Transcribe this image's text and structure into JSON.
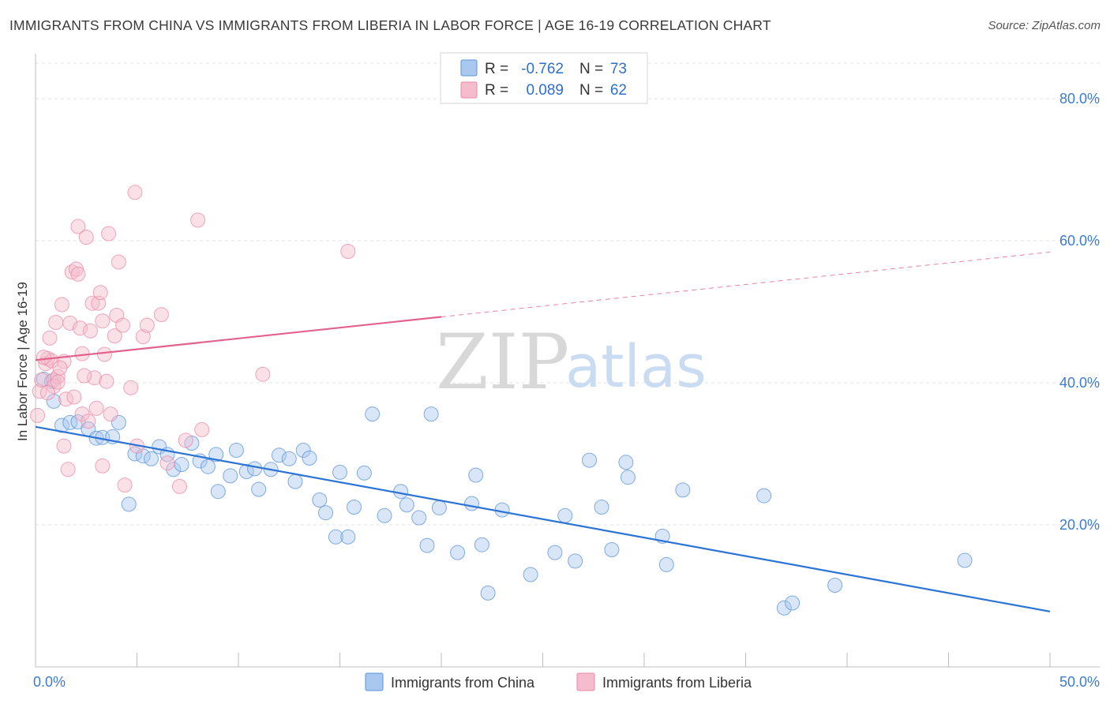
{
  "header": {
    "title": "IMMIGRANTS FROM CHINA VS IMMIGRANTS FROM LIBERIA IN LABOR FORCE | AGE 16-19 CORRELATION CHART",
    "source": "Source: ZipAtlas.com"
  },
  "watermark": {
    "zip": "ZIP",
    "atlas": "atlas"
  },
  "stats_legend": {
    "r_label": "R =",
    "n_label": "N =",
    "rows": [
      {
        "r": "-0.762",
        "n": "73",
        "color": "#5b93d9"
      },
      {
        "r": "0.089",
        "n": "62",
        "color": "#e98aa8"
      }
    ]
  },
  "chart_data": {
    "type": "scatter",
    "ylabel": "In Labor Force | Age 16-19",
    "xlim": [
      0,
      50
    ],
    "ylim": [
      0,
      85
    ],
    "x_tick_labels": [
      {
        "value": 0,
        "label": "0.0%"
      },
      {
        "value": 50,
        "label": "50.0%"
      }
    ],
    "y_tick_labels": [
      {
        "value": 20,
        "label": "20.0%"
      },
      {
        "value": 40,
        "label": "40.0%"
      },
      {
        "value": 60,
        "label": "60.0%"
      },
      {
        "value": 80,
        "label": "80.0%"
      }
    ],
    "x_minor_ticks": [
      0,
      5,
      10,
      15,
      20,
      25,
      30,
      35,
      40,
      45,
      50
    ],
    "grid": true,
    "legend_position": "bottom-center",
    "series": [
      {
        "name": "Immigrants from China",
        "color": "#5b93d9",
        "fill": "#a9c8ef",
        "trend": {
          "x0": 0,
          "y0": 33.8,
          "x1": 50,
          "y1": 7.8,
          "dashed_from": null
        },
        "points": [
          [
            0.4,
            40.5
          ],
          [
            0.9,
            37.4
          ],
          [
            1.3,
            34.0
          ],
          [
            1.7,
            34.4
          ],
          [
            2.1,
            34.5
          ],
          [
            2.6,
            33.5
          ],
          [
            3.0,
            32.2
          ],
          [
            3.3,
            32.3
          ],
          [
            3.8,
            32.4
          ],
          [
            4.1,
            34.4
          ],
          [
            4.6,
            22.9
          ],
          [
            4.9,
            30.0
          ],
          [
            5.3,
            29.7
          ],
          [
            5.7,
            29.3
          ],
          [
            6.1,
            31.0
          ],
          [
            6.5,
            29.9
          ],
          [
            6.8,
            27.8
          ],
          [
            7.2,
            28.5
          ],
          [
            7.7,
            31.5
          ],
          [
            8.1,
            29.0
          ],
          [
            8.5,
            28.2
          ],
          [
            8.9,
            29.9
          ],
          [
            9.0,
            24.7
          ],
          [
            9.6,
            26.9
          ],
          [
            9.9,
            30.5
          ],
          [
            10.4,
            27.5
          ],
          [
            10.8,
            27.9
          ],
          [
            11.0,
            25.0
          ],
          [
            11.6,
            27.8
          ],
          [
            12.0,
            29.8
          ],
          [
            12.5,
            29.3
          ],
          [
            12.8,
            26.1
          ],
          [
            13.2,
            30.5
          ],
          [
            13.5,
            29.4
          ],
          [
            14.0,
            23.5
          ],
          [
            14.3,
            21.7
          ],
          [
            14.8,
            18.3
          ],
          [
            15.0,
            27.4
          ],
          [
            15.4,
            18.3
          ],
          [
            15.7,
            22.5
          ],
          [
            16.2,
            27.3
          ],
          [
            16.6,
            35.6
          ],
          [
            17.2,
            21.3
          ],
          [
            18.0,
            24.7
          ],
          [
            18.3,
            22.8
          ],
          [
            18.9,
            21.0
          ],
          [
            19.3,
            17.1
          ],
          [
            19.5,
            35.6
          ],
          [
            19.9,
            22.4
          ],
          [
            20.8,
            16.1
          ],
          [
            21.5,
            23.0
          ],
          [
            21.7,
            27.0
          ],
          [
            22.0,
            17.2
          ],
          [
            22.3,
            10.4
          ],
          [
            23.0,
            22.1
          ],
          [
            24.4,
            13.0
          ],
          [
            25.6,
            16.1
          ],
          [
            26.1,
            21.3
          ],
          [
            26.6,
            14.9
          ],
          [
            27.3,
            29.1
          ],
          [
            27.9,
            22.5
          ],
          [
            28.4,
            16.5
          ],
          [
            29.1,
            28.8
          ],
          [
            29.2,
            26.7
          ],
          [
            30.9,
            18.4
          ],
          [
            31.1,
            14.4
          ],
          [
            31.9,
            24.9
          ],
          [
            35.9,
            24.1
          ],
          [
            36.9,
            8.3
          ],
          [
            37.3,
            9.0
          ],
          [
            39.4,
            11.5
          ],
          [
            45.8,
            15.0
          ],
          [
            0.8,
            40.2
          ]
        ]
      },
      {
        "name": "Immigrants from Liberia",
        "color": "#e98aa8",
        "fill": "#f5bccd",
        "trend": {
          "x0": 0,
          "y0": 43.2,
          "x1": 50,
          "y1": 58.4,
          "dashed_from": 20
        },
        "points": [
          [
            0.1,
            35.4
          ],
          [
            0.2,
            38.8
          ],
          [
            0.3,
            40.4
          ],
          [
            0.5,
            42.7
          ],
          [
            0.6,
            43.4
          ],
          [
            0.7,
            46.3
          ],
          [
            0.8,
            43.1
          ],
          [
            0.9,
            40.4
          ],
          [
            1.0,
            48.5
          ],
          [
            1.1,
            40.9
          ],
          [
            1.3,
            51.0
          ],
          [
            1.4,
            31.1
          ],
          [
            1.4,
            43.0
          ],
          [
            1.5,
            37.7
          ],
          [
            1.6,
            27.8
          ],
          [
            1.7,
            48.4
          ],
          [
            1.8,
            55.6
          ],
          [
            1.9,
            38.0
          ],
          [
            2.0,
            56.0
          ],
          [
            2.1,
            62.0
          ],
          [
            2.1,
            55.3
          ],
          [
            2.2,
            47.7
          ],
          [
            2.3,
            44.1
          ],
          [
            2.3,
            35.6
          ],
          [
            2.5,
            60.5
          ],
          [
            2.6,
            34.6
          ],
          [
            2.7,
            47.3
          ],
          [
            2.8,
            51.2
          ],
          [
            2.9,
            40.7
          ],
          [
            3.0,
            36.4
          ],
          [
            3.1,
            51.2
          ],
          [
            3.2,
            52.7
          ],
          [
            3.3,
            48.7
          ],
          [
            3.3,
            28.3
          ],
          [
            3.4,
            44.0
          ],
          [
            3.5,
            40.2
          ],
          [
            3.6,
            61.0
          ],
          [
            3.7,
            35.6
          ],
          [
            3.9,
            46.6
          ],
          [
            4.0,
            49.5
          ],
          [
            4.1,
            57.0
          ],
          [
            4.3,
            48.1
          ],
          [
            4.4,
            25.6
          ],
          [
            4.7,
            39.3
          ],
          [
            4.9,
            66.8
          ],
          [
            5.0,
            31.1
          ],
          [
            5.3,
            46.5
          ],
          [
            5.5,
            48.1
          ],
          [
            6.2,
            49.6
          ],
          [
            6.5,
            28.7
          ],
          [
            7.1,
            25.4
          ],
          [
            7.4,
            31.9
          ],
          [
            8.0,
            62.9
          ],
          [
            8.2,
            33.4
          ],
          [
            11.2,
            41.2
          ],
          [
            15.4,
            58.5
          ],
          [
            0.4,
            43.6
          ],
          [
            0.9,
            39.5
          ],
          [
            1.2,
            42.1
          ],
          [
            2.4,
            41.0
          ],
          [
            0.6,
            38.6
          ],
          [
            1.1,
            40.1
          ]
        ]
      }
    ]
  }
}
